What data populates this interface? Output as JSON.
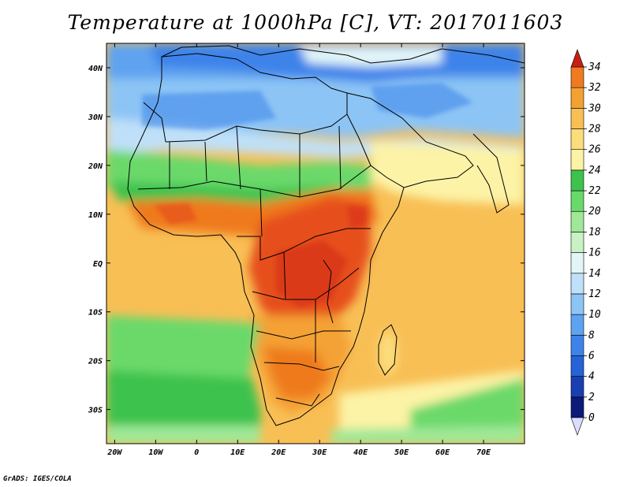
{
  "title": "Temperature at 1000hPa [C], VT: 2017011603",
  "credit": "GrADS: IGES/COLA",
  "map": {
    "lon_range": [
      -22,
      80
    ],
    "lat_range": [
      -37,
      45
    ],
    "x_ticks": [
      {
        "value": -20,
        "label": "20W"
      },
      {
        "value": -10,
        "label": "10W"
      },
      {
        "value": 0,
        "label": "0"
      },
      {
        "value": 10,
        "label": "10E"
      },
      {
        "value": 20,
        "label": "20E"
      },
      {
        "value": 30,
        "label": "30E"
      },
      {
        "value": 40,
        "label": "40E"
      },
      {
        "value": 50,
        "label": "50E"
      },
      {
        "value": 60,
        "label": "60E"
      },
      {
        "value": 70,
        "label": "70E"
      }
    ],
    "y_ticks": [
      {
        "value": 40,
        "label": "40N"
      },
      {
        "value": 30,
        "label": "30N"
      },
      {
        "value": 20,
        "label": "20N"
      },
      {
        "value": 10,
        "label": "10N"
      },
      {
        "value": 0,
        "label": "EQ"
      },
      {
        "value": -10,
        "label": "10S"
      },
      {
        "value": -20,
        "label": "20S"
      },
      {
        "value": -30,
        "label": "30S"
      }
    ]
  },
  "colorbar": {
    "levels": [
      "0",
      "2",
      "4",
      "6",
      "8",
      "10",
      "12",
      "14",
      "16",
      "18",
      "20",
      "22",
      "24",
      "26",
      "28",
      "30",
      "32",
      "34"
    ],
    "colors": [
      "#0c1a78",
      "#1a3fb0",
      "#2563d6",
      "#3d83ea",
      "#5ea3f0",
      "#8cc4f5",
      "#bfe0f8",
      "#e2f6f8",
      "#c8f2c4",
      "#9fe897",
      "#6ad96a",
      "#3ec24e",
      "#fcf3a6",
      "#fbdd7c",
      "#f8bf55",
      "#f4a134",
      "#ef7a1f",
      "#e6501a",
      "#d2241a"
    ],
    "below_color": "#dcdcff",
    "above_color": "#c81e14"
  }
}
